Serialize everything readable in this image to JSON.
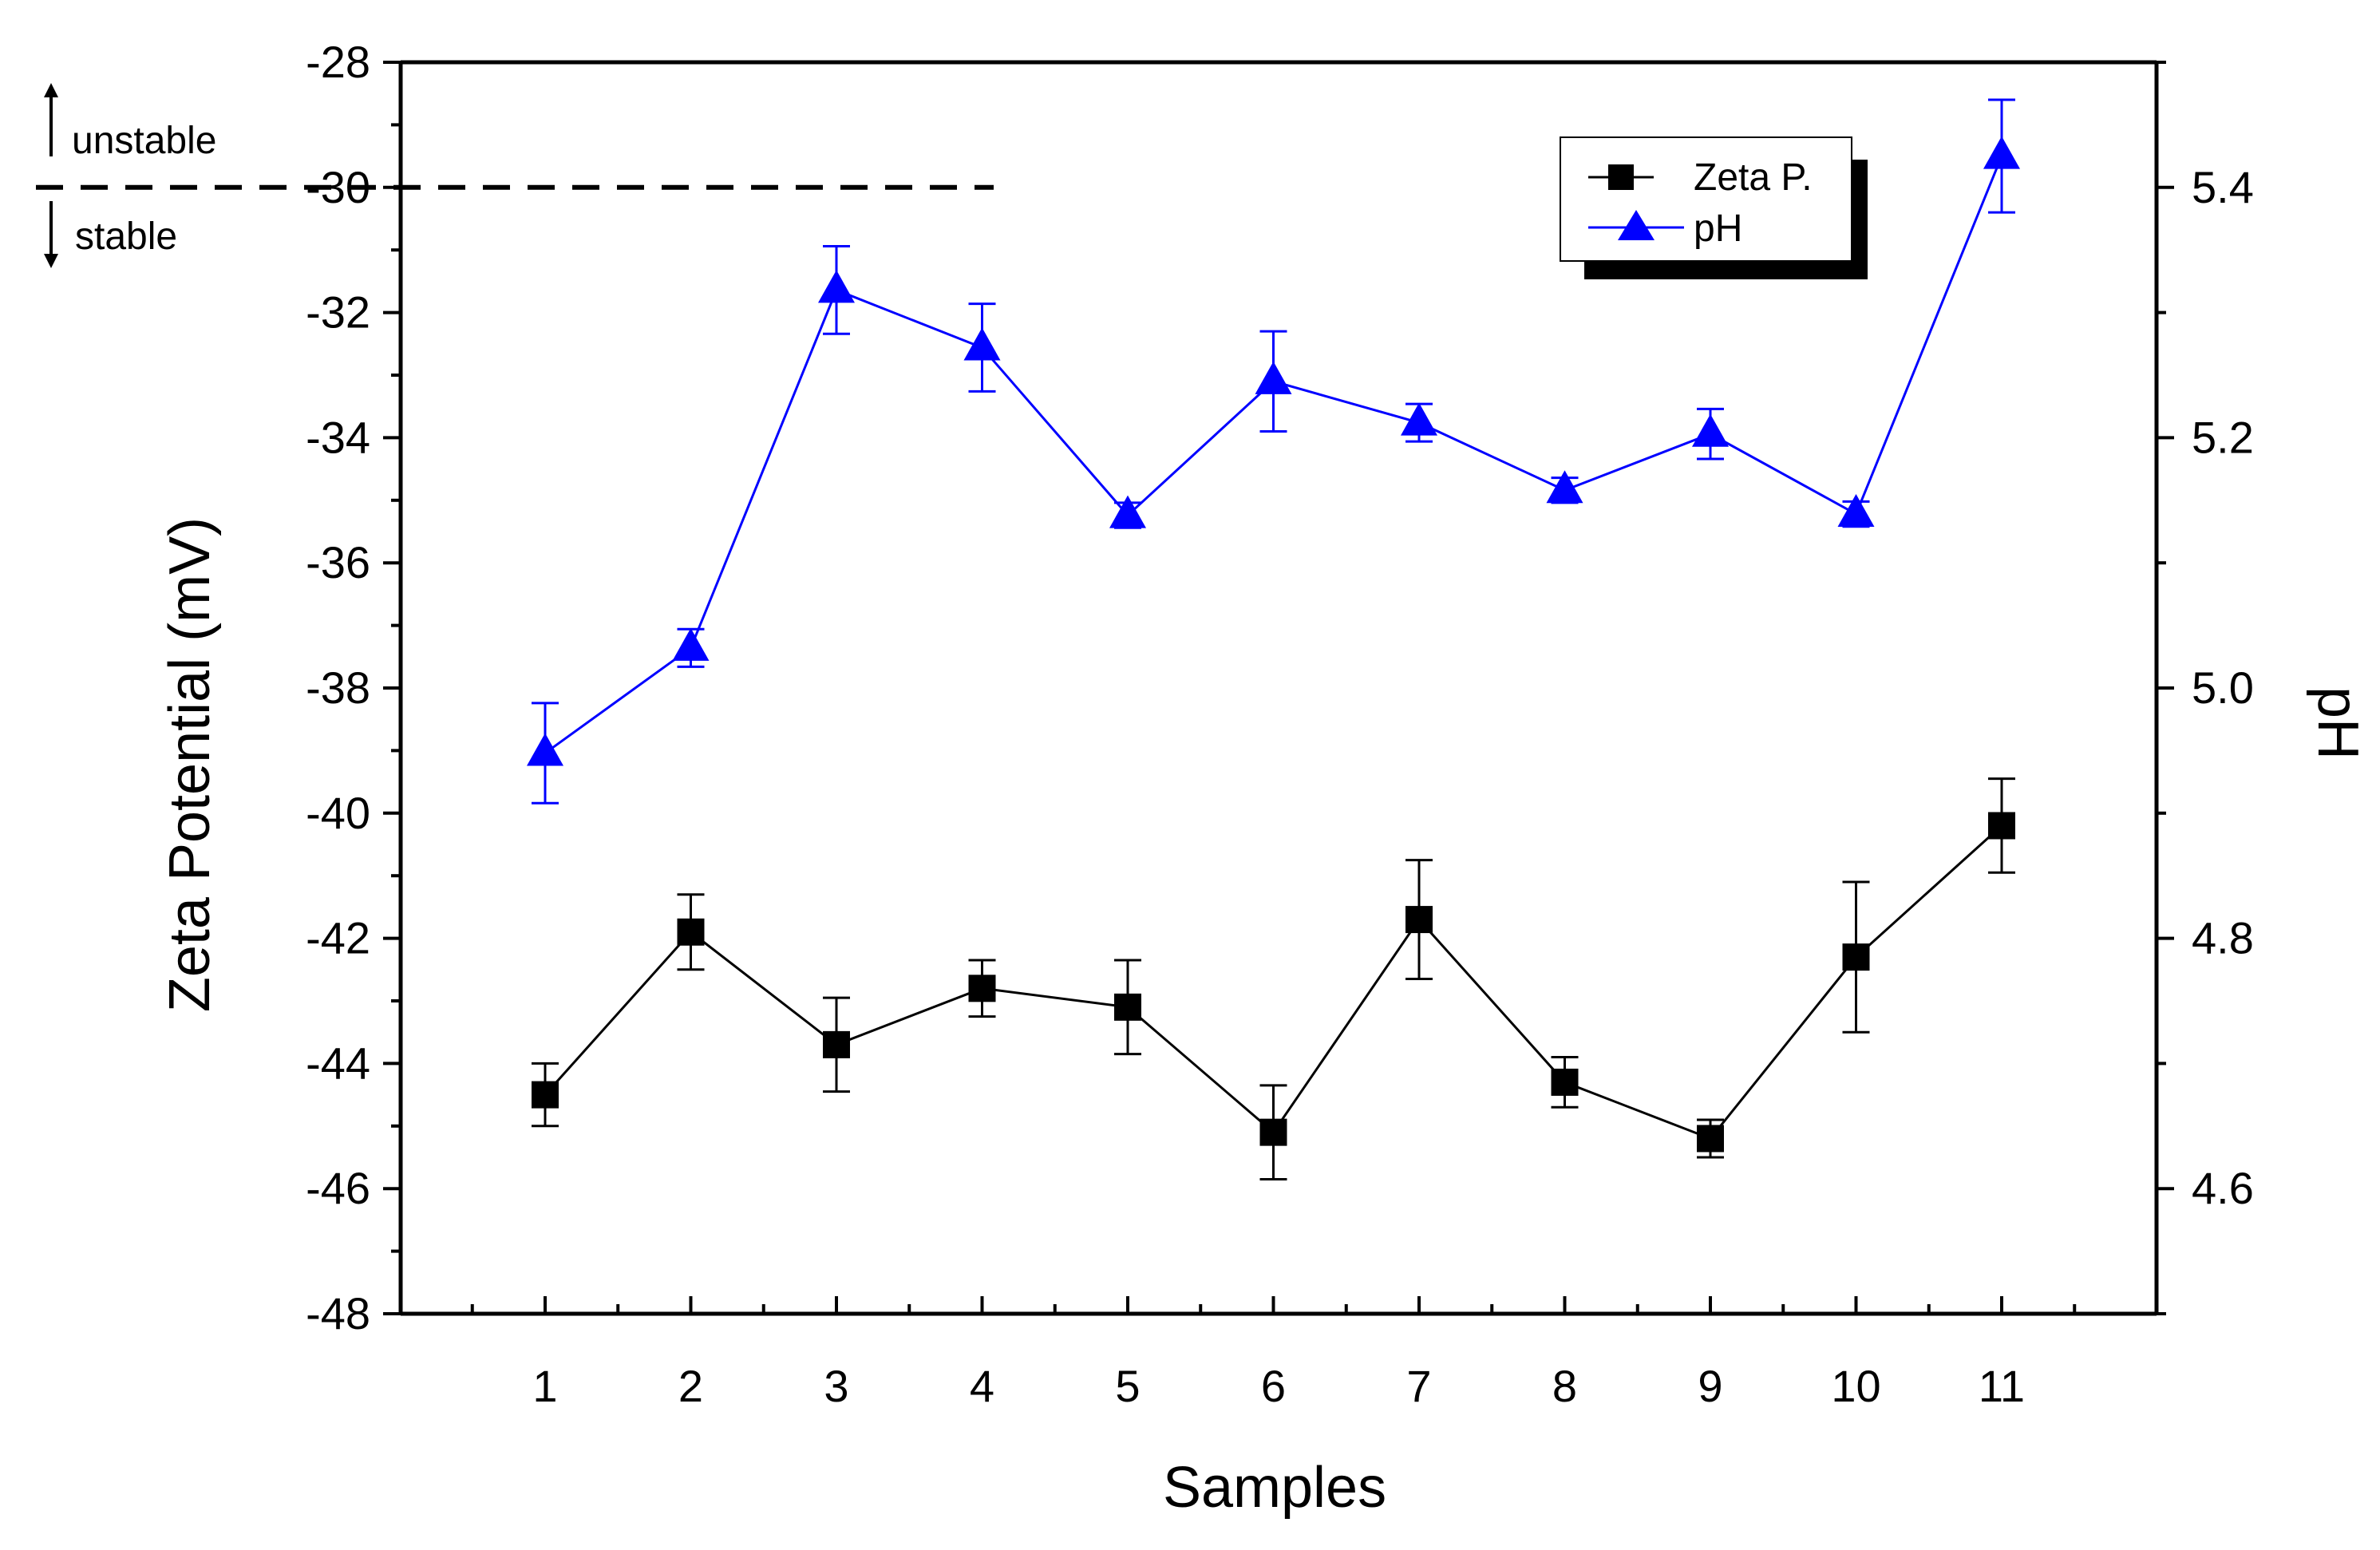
{
  "chart_data": {
    "type": "line",
    "xlabel": "Samples",
    "ylabel": "Zeta Potential (mV)",
    "y2label": "pH",
    "categories": [
      "1",
      "2",
      "3",
      "4",
      "5",
      "6",
      "7",
      "8",
      "9",
      "10",
      "11"
    ],
    "ylim": [
      -48,
      -28
    ],
    "y_ticks": [
      "-28",
      "-30",
      "-32",
      "-34",
      "-36",
      "-38",
      "-40",
      "-42",
      "-44",
      "-46",
      "-48"
    ],
    "y2lim": [
      4.5,
      5.5
    ],
    "y2_ticks": [
      "5.4",
      "5.2",
      "5.0",
      "4.8",
      "4.6"
    ],
    "series": [
      {
        "name": "Zeta P.",
        "axis": "left",
        "color": "#000000",
        "marker": "square",
        "values": [
          -44.5,
          -41.9,
          -43.7,
          -42.8,
          -43.1,
          -45.1,
          -41.7,
          -44.3,
          -45.2,
          -42.3,
          -40.2
        ],
        "errors": [
          0.5,
          0.6,
          0.75,
          0.45,
          0.75,
          0.75,
          0.95,
          0.4,
          0.3,
          1.2,
          0.75
        ]
      },
      {
        "name": "pH",
        "axis": "right",
        "color": "#0000ff",
        "marker": "triangle",
        "values": [
          4.948,
          5.032,
          5.318,
          5.272,
          5.138,
          5.245,
          5.212,
          5.158,
          5.203,
          5.139,
          5.425
        ],
        "errors": [
          0.04,
          0.015,
          0.035,
          0.035,
          0.01,
          0.04,
          0.015,
          0.01,
          0.02,
          0.01,
          0.045
        ]
      }
    ],
    "reference_line": {
      "y": -30,
      "style": "dashed",
      "color": "#000000"
    },
    "annotations": {
      "up": "unstable",
      "down": "stable"
    },
    "legend_position": "top-right"
  }
}
